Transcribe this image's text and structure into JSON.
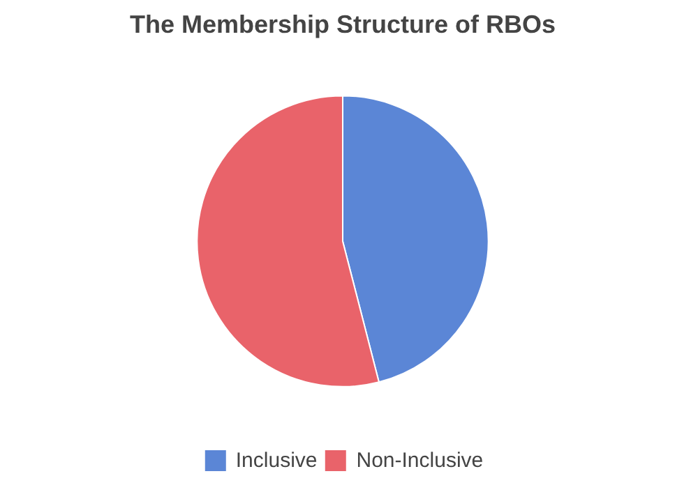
{
  "chart_data": {
    "type": "pie",
    "title": "The Membership Structure of RBOs",
    "categories": [
      "Inclusive",
      "Non-Inclusive"
    ],
    "values": [
      46,
      54
    ],
    "colors": [
      "#5b86d6",
      "#e9636a"
    ],
    "legend": "bottom"
  }
}
